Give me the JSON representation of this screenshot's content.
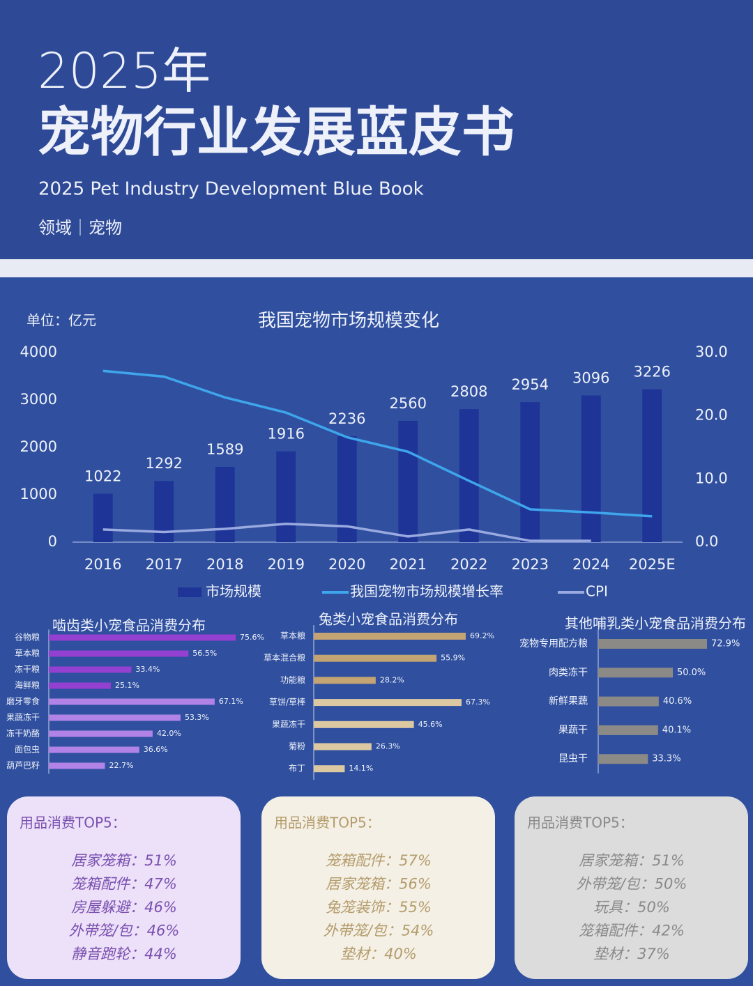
{
  "header": {
    "year": "2025年",
    "title": "宠物行业发展蓝皮书",
    "subtitle": "2025 Pet Industry Development Blue Book",
    "tag": "领域｜宠物"
  },
  "chart_data": [
    {
      "type": "bar",
      "title": "我国宠物市场规模变化",
      "unit": "单位：亿元",
      "categories": [
        "2016",
        "2017",
        "2018",
        "2019",
        "2020",
        "2021",
        "2022",
        "2023",
        "2024",
        "2025E"
      ],
      "series": [
        {
          "name": "市场规模",
          "type": "bar",
          "color": "#1f3497",
          "values": [
            1022,
            1292,
            1589,
            1916,
            2236,
            2560,
            2808,
            2954,
            3096,
            3226
          ]
        },
        {
          "name": "我国宠物市场规模增长率",
          "type": "line",
          "axis": "y2",
          "color": "#3ea6ec",
          "values": [
            27.1,
            26.2,
            22.9,
            20.5,
            16.6,
            14.3,
            9.7,
            5.2,
            4.7,
            4.1
          ]
        },
        {
          "name": "CPI",
          "type": "line",
          "axis": "y2",
          "color": "#9aaae0",
          "values": [
            2.0,
            1.6,
            2.1,
            2.9,
            2.5,
            0.9,
            2.0,
            0.2,
            0.2,
            null
          ]
        }
      ],
      "ylim": [
        0,
        4000
      ],
      "yticks": [
        0,
        1000,
        2000,
        3000,
        4000
      ],
      "y2lim": [
        0,
        30
      ],
      "y2ticks": [
        {
          "value": 0,
          "label": "0.0"
        },
        {
          "value": 10,
          "label": "10.0"
        },
        {
          "value": 20,
          "label": "20.0"
        },
        {
          "value": 30,
          "label": "30.0"
        }
      ],
      "grid": false
    },
    {
      "type": "barh",
      "title": "啮齿类小宠食品消费分布",
      "categories": [
        "谷物粮",
        "草本粮",
        "冻干粮",
        "海鲜粮",
        "磨牙零食",
        "果蔬冻干",
        "冻干奶酪",
        "面包虫",
        "葫芦巴籽"
      ],
      "values": [
        75.6,
        56.5,
        33.4,
        25.1,
        67.1,
        53.3,
        42.0,
        36.6,
        22.7
      ],
      "value_labels": [
        "75.6%",
        "56.5%",
        "33.4%",
        "25.1%",
        "67.1%",
        "53.3%",
        "42.0%",
        "36.6%",
        "22.7%"
      ],
      "colors": [
        "#9440d0",
        "#9440d0",
        "#9440d0",
        "#9440d0",
        "#b283e6",
        "#b283e6",
        "#b283e6",
        "#b283e6",
        "#b283e6"
      ]
    },
    {
      "type": "barh",
      "title": "兔类小宠食品消费分布",
      "categories": [
        "草本粮",
        "草本混合粮",
        "功能粮",
        "草饼/草棒",
        "果蔬冻干",
        "菊粉",
        "布丁"
      ],
      "values": [
        69.2,
        55.9,
        28.2,
        67.3,
        45.6,
        26.3,
        14.1
      ],
      "value_labels": [
        "69.2%",
        "55.9%",
        "28.2%",
        "67.3%",
        "45.6%",
        "26.3%",
        "14.1%"
      ],
      "colors": [
        "#c3a472",
        "#c3a472",
        "#c3a472",
        "#dcc9a2",
        "#dcc9a2",
        "#dcc9a2",
        "#dcc9a2"
      ]
    },
    {
      "type": "barh",
      "title": "其他哺乳类小宠食品消费分布",
      "categories": [
        "宠物专用配方粮",
        "肉类冻干",
        "新鲜果蔬",
        "果蔬干",
        "昆虫干"
      ],
      "values": [
        72.9,
        50.0,
        40.6,
        40.1,
        33.3
      ],
      "value_labels": [
        "72.9%",
        "50.0%",
        "40.6%",
        "40.1%",
        "33.3%"
      ],
      "color": "#8c8a86"
    }
  ],
  "cards": [
    {
      "title": "用品消费TOP5：",
      "items": [
        "居家笼箱：51%",
        "笼箱配件：47%",
        "房屋躲避：46%",
        "外带笼/包：46%",
        "静音跑轮：44%"
      ]
    },
    {
      "title": "用品消费TOP5：",
      "items": [
        "笼箱配件：57%",
        "居家笼箱：56%",
        "兔笼装饰：55%",
        "外带笼/包：54%",
        "垫材：40%"
      ]
    },
    {
      "title": "用品消费TOP5：",
      "items": [
        "居家笼箱：51%",
        "外带笼/包：50%",
        "玩具：50%",
        "笼箱配件：42%",
        "垫材：37%"
      ]
    }
  ]
}
